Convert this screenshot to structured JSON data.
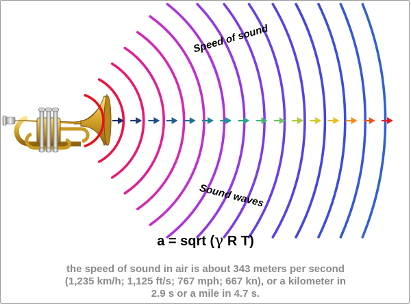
{
  "labels": {
    "speed_of_sound": "Speed of sound",
    "sound_waves": "Sound waves"
  },
  "formula": {
    "prefix": "a = sqrt (",
    "gamma": "γ",
    "suffix": " R T)"
  },
  "caption": {
    "line1": "the speed of sound in air is about 343 meters per second",
    "line2": "(1,235 km/h; 1,125 ft/s; 767 mph; 667 kn), or a kilometer in",
    "line3": "2.9 s or a mile in 4.7 s."
  },
  "wave_colors": [
    "#e8101c",
    "#ea1446",
    "#e81a70",
    "#e02096",
    "#d428b4",
    "#c22ecc",
    "#ac34dc",
    "#9438e4",
    "#7c3ce8",
    "#683fe8",
    "#5442e6",
    "#4446e2",
    "#3a4edc",
    "#3458d6",
    "#3062d0"
  ],
  "arrow_colors": [
    "#1e2a66",
    "#1e3a78",
    "#1e4c86",
    "#1e5f8f",
    "#1c7296",
    "#1c8498",
    "#1e9694",
    "#2aa68a",
    "#48b47a",
    "#74c25e",
    "#a8cc3c",
    "#d0cc22",
    "#f0b81e",
    "#f48a1a",
    "#ee5418",
    "#e41e1e"
  ],
  "icons": {
    "instrument": "trumpet-icon"
  }
}
